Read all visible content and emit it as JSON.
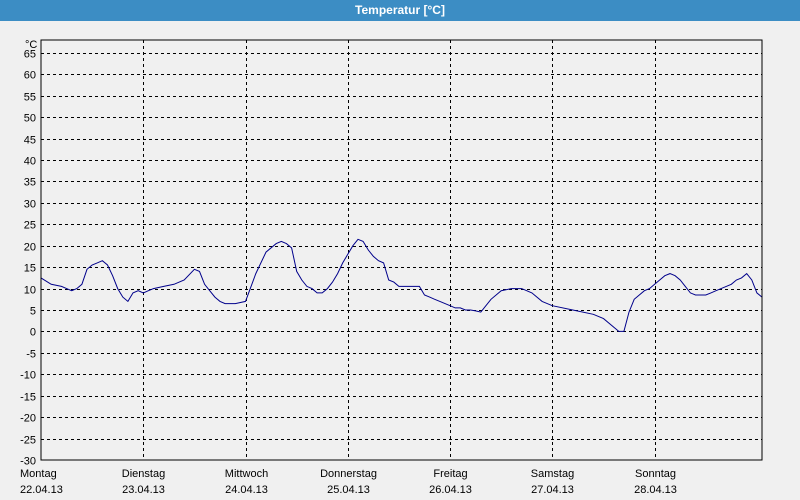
{
  "window": {
    "title": "Temperatur [°C]"
  },
  "chart_data": {
    "type": "line",
    "title": "Temperatur [°C]",
    "ylabel": "°C",
    "ylim": [
      -30,
      68
    ],
    "y_ticks": [
      65,
      60,
      55,
      50,
      45,
      40,
      35,
      30,
      25,
      20,
      15,
      10,
      5,
      0,
      -5,
      -10,
      -15,
      -20,
      -25,
      -30
    ],
    "x_range_days": [
      0,
      7.05
    ],
    "x_categories": [
      {
        "day": "Montag",
        "date": "22.04.13"
      },
      {
        "day": "Dienstag",
        "date": "23.04.13"
      },
      {
        "day": "Mittwoch",
        "date": "24.04.13"
      },
      {
        "day": "Donnerstag",
        "date": "25.04.13"
      },
      {
        "day": "Freitag",
        "date": "26.04.13"
      },
      {
        "day": "Samstag",
        "date": "27.04.13"
      },
      {
        "day": "Sonntag",
        "date": "28.04.13"
      }
    ],
    "grid": true,
    "series": [
      {
        "color": "#00008b",
        "x": [
          0.0,
          0.1,
          0.2,
          0.25,
          0.3,
          0.35,
          0.4,
          0.45,
          0.5,
          0.55,
          0.6,
          0.65,
          0.7,
          0.75,
          0.8,
          0.85,
          0.9,
          0.95,
          1.0,
          1.05,
          1.1,
          1.2,
          1.3,
          1.4,
          1.5,
          1.55,
          1.6,
          1.65,
          1.7,
          1.75,
          1.8,
          1.85,
          1.9,
          2.0,
          2.1,
          2.2,
          2.3,
          2.35,
          2.4,
          2.45,
          2.5,
          2.55,
          2.6,
          2.65,
          2.7,
          2.75,
          2.8,
          2.85,
          2.9,
          2.95,
          3.0,
          3.05,
          3.1,
          3.15,
          3.2,
          3.25,
          3.3,
          3.35,
          3.4,
          3.45,
          3.5,
          3.55,
          3.6,
          3.65,
          3.7,
          3.75,
          3.8,
          3.85,
          3.9,
          3.95,
          4.0,
          4.05,
          4.1,
          4.15,
          4.2,
          4.25,
          4.3,
          4.4,
          4.5,
          4.6,
          4.7,
          4.8,
          4.9,
          5.0,
          5.2,
          5.4,
          5.5,
          5.6,
          5.65,
          5.7,
          5.75,
          5.8,
          5.85,
          5.9,
          5.95,
          6.0,
          6.05,
          6.1,
          6.15,
          6.2,
          6.25,
          6.3,
          6.35,
          6.4,
          6.45,
          6.5,
          6.55,
          6.6,
          6.65,
          6.7,
          6.75,
          6.8,
          6.85,
          6.9,
          6.95,
          7.0,
          7.05
        ],
        "y": [
          12.5,
          11,
          10.5,
          10,
          9.5,
          10,
          11,
          14.5,
          15.5,
          16,
          16.5,
          15.5,
          13,
          10,
          8,
          7,
          9,
          9.5,
          9,
          9.5,
          10,
          10.5,
          11,
          12,
          14.5,
          14,
          11,
          9.5,
          8,
          7,
          6.5,
          6.5,
          6.5,
          7,
          13.5,
          18.5,
          20.5,
          21,
          20.5,
          19.5,
          14,
          12,
          10.5,
          10,
          9,
          9,
          10,
          11.5,
          13.5,
          16,
          18,
          20,
          21.5,
          21,
          19,
          17.5,
          16.5,
          16,
          12,
          11.5,
          10.5,
          10.5,
          10.5,
          10.5,
          10.5,
          8.5,
          8,
          7.5,
          7,
          6.5,
          6,
          5.5,
          5.5,
          5,
          5,
          4.8,
          4.5,
          7.5,
          9.5,
          10,
          10,
          9,
          7,
          6,
          5,
          4,
          3,
          1,
          0,
          0,
          4.5,
          7.5,
          8.5,
          9.5,
          10,
          11,
          12,
          13,
          13.5,
          13,
          12,
          10.5,
          9,
          8.5,
          8.5,
          8.5,
          9,
          9.5,
          10,
          10.5,
          11,
          12,
          12.5,
          13.5,
          12,
          9,
          8
        ]
      }
    ]
  }
}
